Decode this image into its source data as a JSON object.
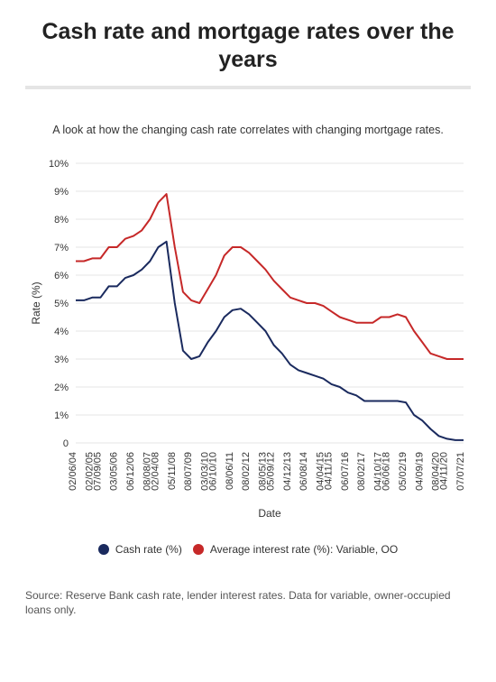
{
  "title": "Cash rate and mortgage rates over the years",
  "subtitle": "A look at how the changing cash rate correlates with changing mortgage rates.",
  "source": "Source: Reserve Bank cash rate, lender interest rates. Data for variable, owner-occupied loans only.",
  "chart": {
    "type": "line",
    "background_color": "#ffffff",
    "grid_color": "#e5e5e5",
    "axis_color": "#b0b0b0",
    "text_color": "#333333",
    "title_fontsize": 25,
    "label_fontsize": 12,
    "tick_fontsize": 11,
    "ylabel": "Rate (%)",
    "xlabel": "Date",
    "ylim": [
      0,
      10
    ],
    "ytick_step": 1,
    "yticks": [
      "0",
      "1%",
      "2%",
      "3%",
      "4%",
      "5%",
      "6%",
      "7%",
      "8%",
      "9%",
      "10%"
    ],
    "xticks": [
      "02/06/04",
      "02/02/05",
      "07/09/05",
      "03/05/06",
      "06/12/06",
      "08/08/07",
      "02/04/08",
      "05/11/08",
      "08/07/09",
      "03/03/10",
      "06/10/10",
      "08/06/11",
      "08/02/12",
      "08/05/13",
      "05/09/12",
      "04/12/13",
      "06/08/14",
      "04/04/15",
      "04/11/15",
      "06/07/16",
      "08/02/17",
      "04/10/17",
      "06/06/18",
      "05/02/19",
      "04/09/19",
      "08/04/20",
      "04/11/20",
      "07/07/21"
    ],
    "line_width": 2,
    "series": [
      {
        "name": "Cash rate (%)",
        "color": "#1a2a5e",
        "values": [
          5.1,
          5.1,
          5.2,
          5.2,
          5.6,
          5.6,
          5.9,
          6.0,
          6.2,
          6.5,
          7.0,
          7.2,
          5.0,
          3.3,
          3.0,
          3.1,
          3.6,
          4.0,
          4.5,
          4.75,
          4.8,
          4.6,
          4.3,
          4.0,
          3.5,
          3.2,
          2.8,
          2.6,
          2.5,
          2.4,
          2.3,
          2.1,
          2.0,
          1.8,
          1.7,
          1.5,
          1.5,
          1.5,
          1.5,
          1.5,
          1.45,
          1.0,
          0.8,
          0.5,
          0.25,
          0.15,
          0.1,
          0.1
        ]
      },
      {
        "name": "Average interest rate (%): Variable, OO",
        "color": "#c62828",
        "values": [
          6.5,
          6.5,
          6.6,
          6.6,
          7.0,
          7.0,
          7.3,
          7.4,
          7.6,
          8.0,
          8.6,
          8.9,
          7.0,
          5.4,
          5.1,
          5.0,
          5.5,
          6.0,
          6.7,
          7.0,
          7.0,
          6.8,
          6.5,
          6.2,
          5.8,
          5.5,
          5.2,
          5.1,
          5.0,
          5.0,
          4.9,
          4.7,
          4.5,
          4.4,
          4.3,
          4.3,
          4.3,
          4.5,
          4.5,
          4.6,
          4.5,
          4.0,
          3.6,
          3.2,
          3.1,
          3.0,
          3.0,
          3.0
        ]
      }
    ]
  },
  "legend": {
    "items": [
      {
        "label": "Cash rate (%)",
        "color": "#1a2a5e"
      },
      {
        "label": "Average interest rate (%): Variable, OO",
        "color": "#c62828"
      }
    ]
  }
}
